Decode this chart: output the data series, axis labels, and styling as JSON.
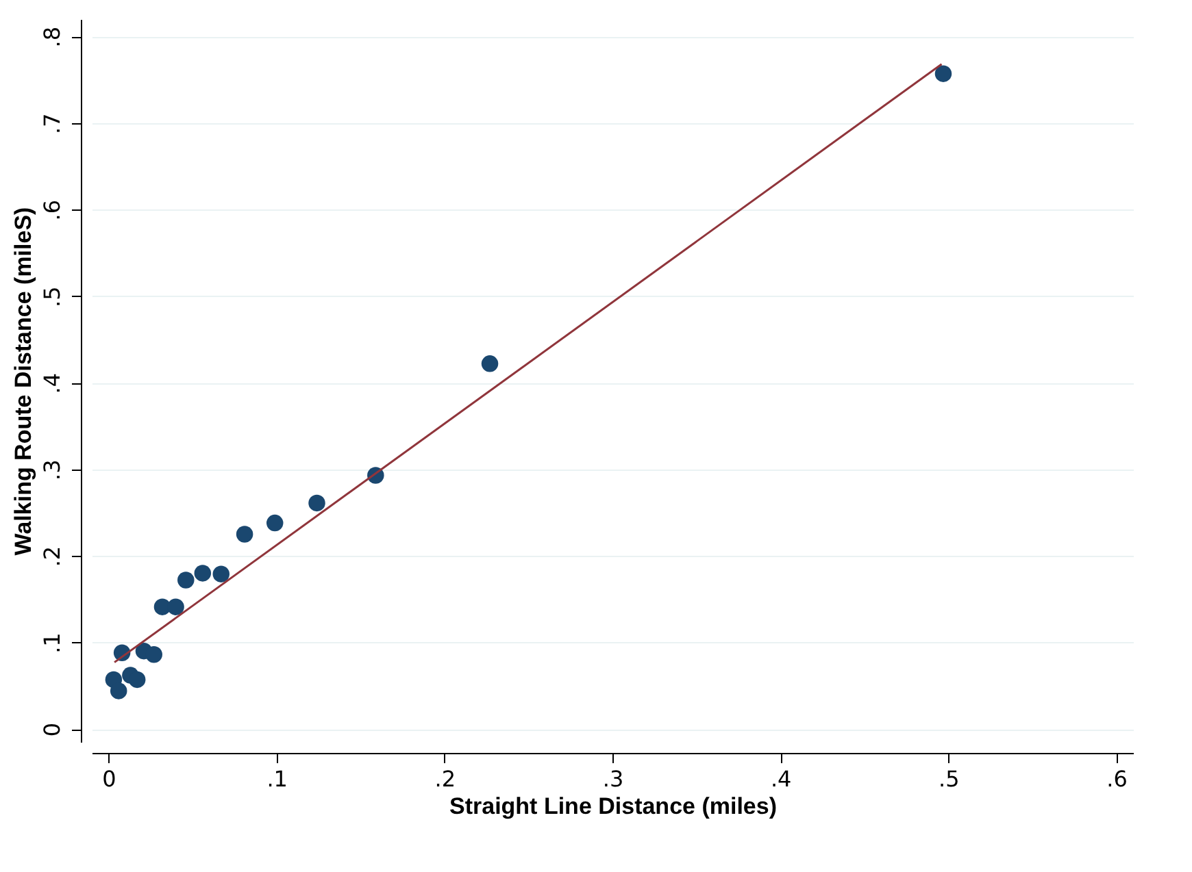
{
  "chart_data": {
    "type": "scatter",
    "xlabel": "Straight Line Distance (miles)",
    "ylabel": "Walking Route Distance (mileS)",
    "xlim": [
      -0.01,
      0.61
    ],
    "ylim": [
      -0.015,
      0.82
    ],
    "xticks": [
      {
        "value": 0,
        "label": "0"
      },
      {
        "value": 0.1,
        "label": ".1"
      },
      {
        "value": 0.2,
        "label": ".2"
      },
      {
        "value": 0.3,
        "label": ".3"
      },
      {
        "value": 0.4,
        "label": ".4"
      },
      {
        "value": 0.5,
        "label": ".5"
      },
      {
        "value": 0.6,
        "label": ".6"
      }
    ],
    "yticks": [
      {
        "value": 0,
        "label": "0"
      },
      {
        "value": 0.1,
        "label": ".1"
      },
      {
        "value": 0.2,
        "label": ".2"
      },
      {
        "value": 0.3,
        "label": ".3"
      },
      {
        "value": 0.4,
        "label": ".4"
      },
      {
        "value": 0.5,
        "label": ".5"
      },
      {
        "value": 0.6,
        "label": ".6"
      },
      {
        "value": 0.7,
        "label": ".7"
      },
      {
        "value": 0.8,
        "label": ".8"
      }
    ],
    "grid": "y",
    "marker": "circle",
    "series": [
      {
        "color": "#1a476f",
        "x": [
          0.003,
          0.006,
          0.008,
          0.013,
          0.017,
          0.021,
          0.027,
          0.032,
          0.04,
          0.046,
          0.056,
          0.067,
          0.081,
          0.099,
          0.124,
          0.159,
          0.227,
          0.497
        ],
        "values": [
          0.057,
          0.044,
          0.088,
          0.062,
          0.057,
          0.09,
          0.086,
          0.141,
          0.141,
          0.172,
          0.18,
          0.179,
          0.225,
          0.238,
          0.261,
          0.293,
          0.422,
          0.757
        ]
      },
      {
        "type": "line",
        "color": "#90353b",
        "line_style": "solid",
        "marker": "none",
        "x": [
          0.0035,
          0.496
        ],
        "values": [
          0.077,
          0.768
        ]
      }
    ]
  }
}
